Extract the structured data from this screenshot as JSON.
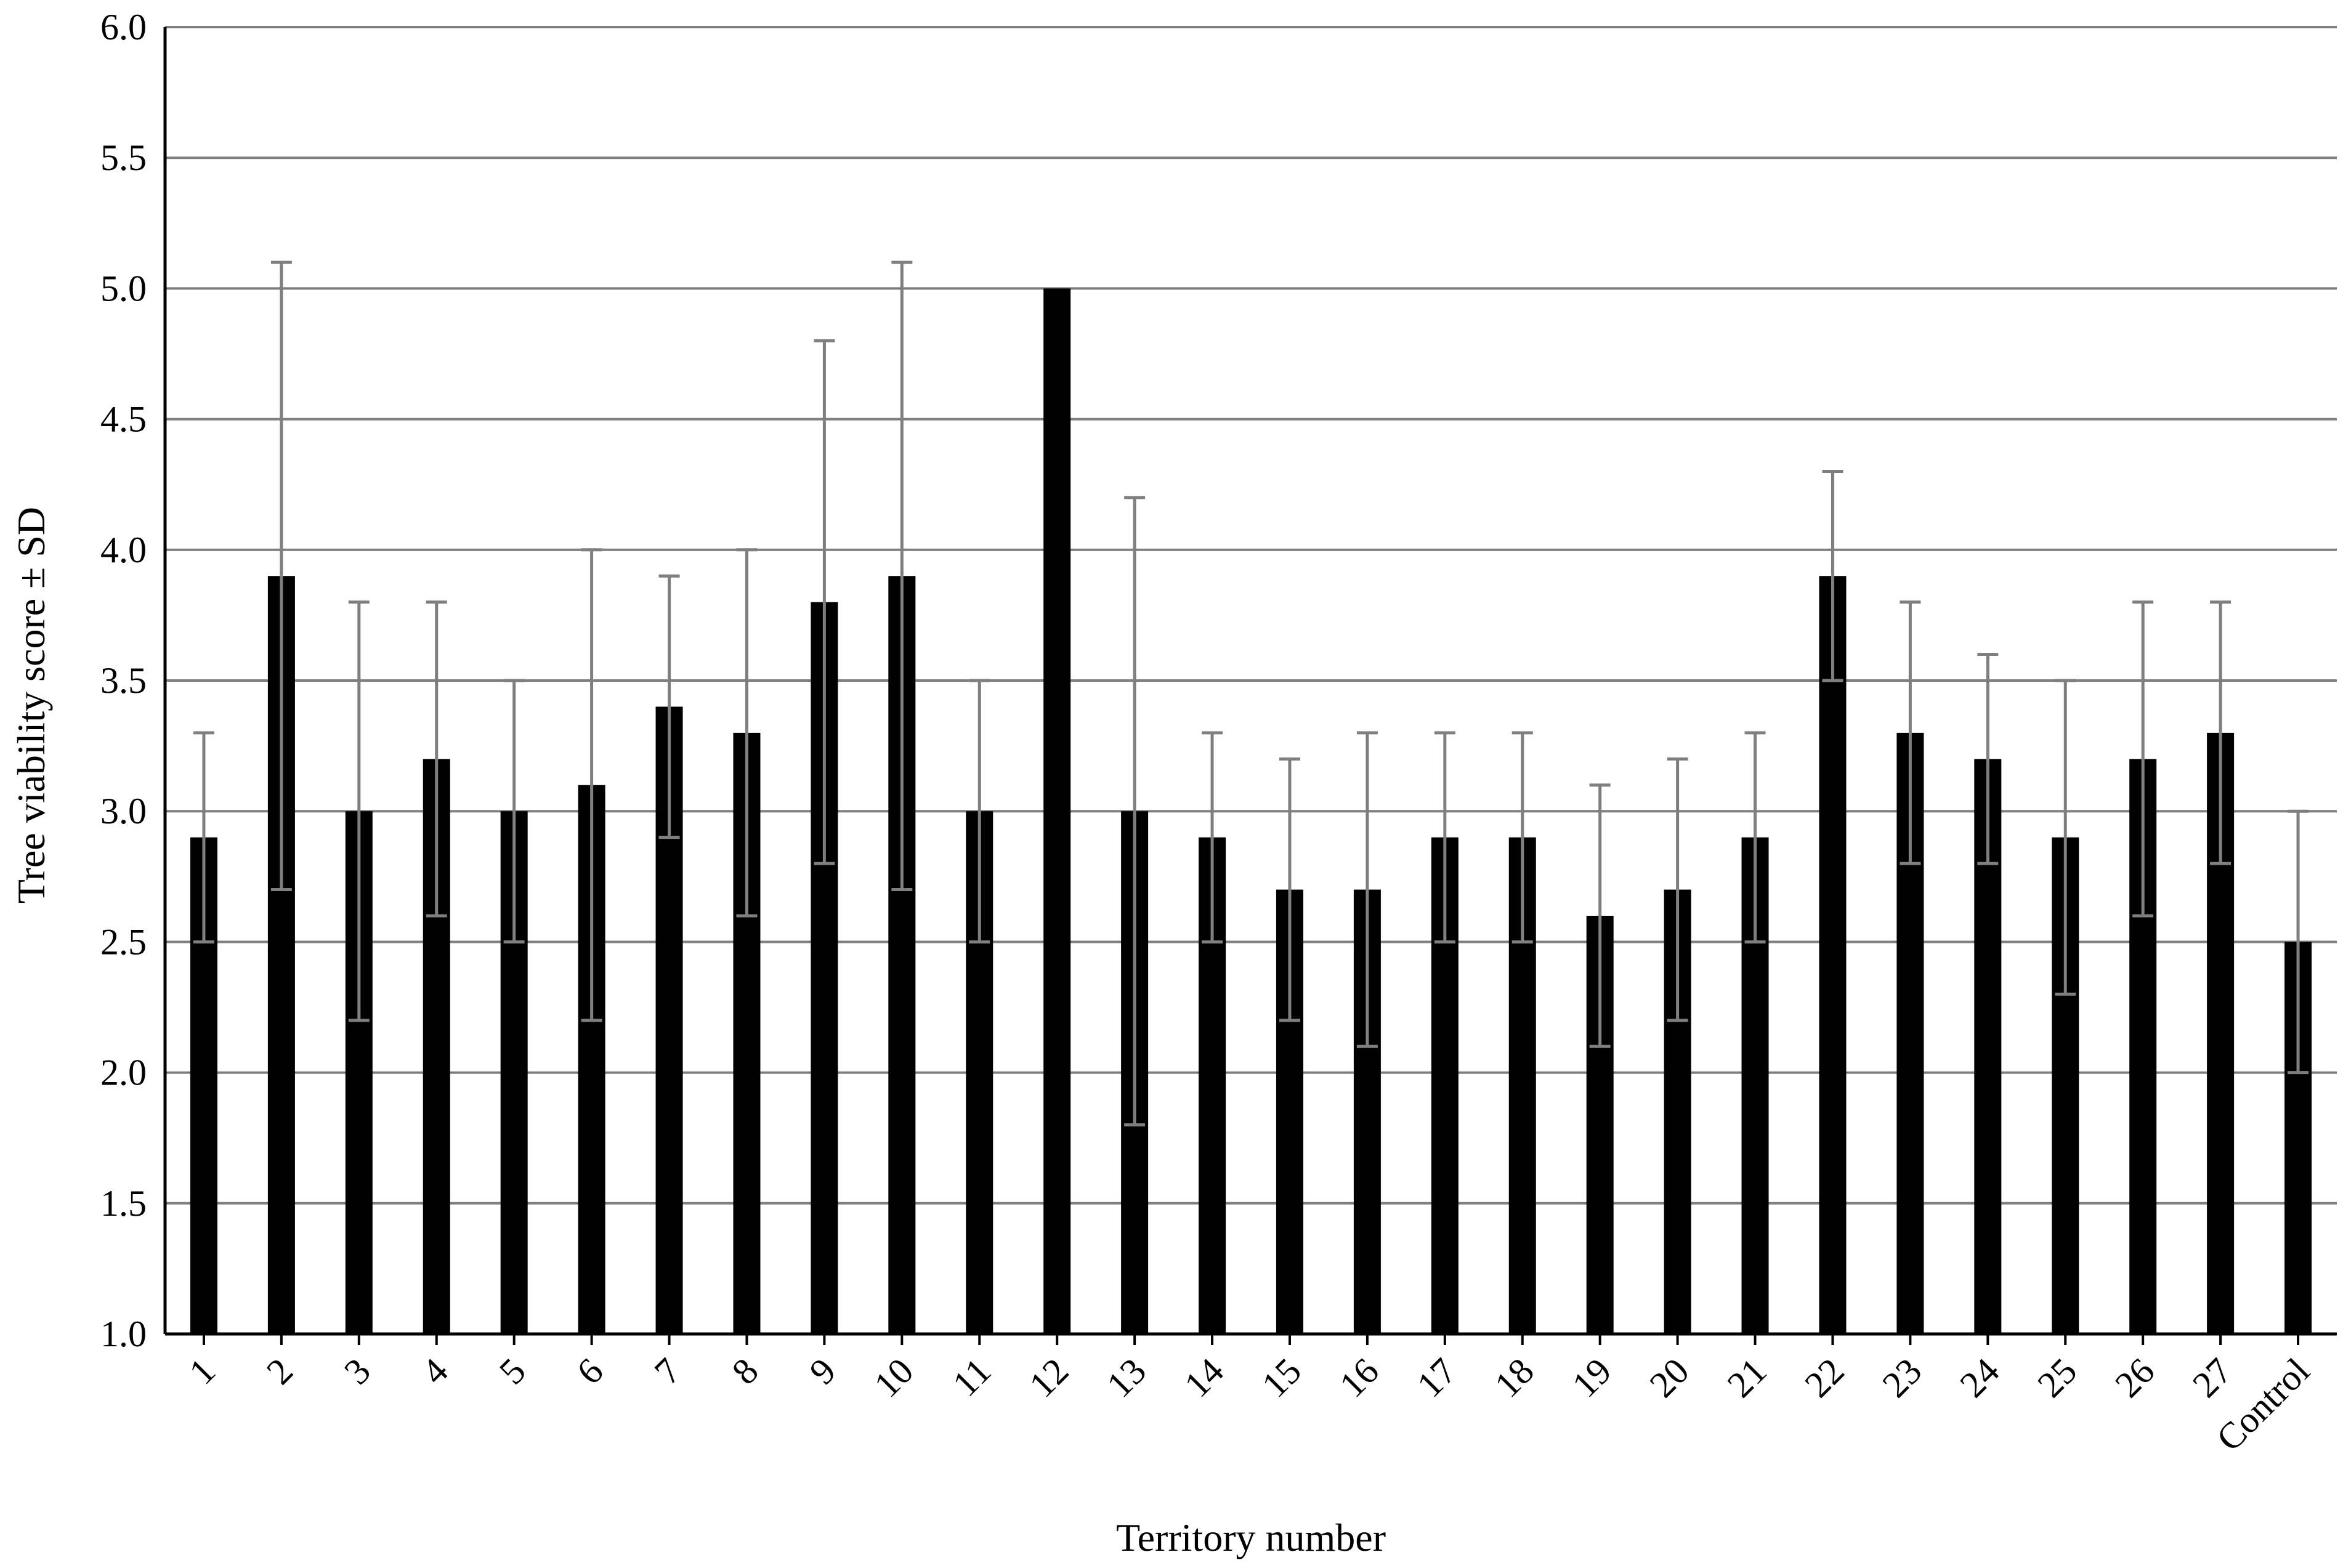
{
  "chart_data": {
    "type": "bar",
    "xlabel": "Territory number",
    "ylabel": "Tree viability score ± SD",
    "ylim": [
      1.0,
      6.0
    ],
    "yticks": [
      "1.0",
      "1.5",
      "2.0",
      "2.5",
      "3.0",
      "3.5",
      "4.0",
      "4.5",
      "5.0",
      "5.5",
      "6.0"
    ],
    "grid": true,
    "categories": [
      "1",
      "2",
      "3",
      "4",
      "5",
      "6",
      "7",
      "8",
      "9",
      "10",
      "11",
      "12",
      "13",
      "14",
      "15",
      "16",
      "17",
      "18",
      "19",
      "20",
      "21",
      "22",
      "23",
      "24",
      "25",
      "26",
      "27",
      "Control"
    ],
    "values": [
      2.9,
      3.9,
      3.0,
      3.2,
      3.0,
      3.1,
      3.4,
      3.3,
      3.8,
      3.9,
      3.0,
      5.0,
      3.0,
      2.9,
      2.7,
      2.7,
      2.9,
      2.9,
      2.6,
      2.7,
      2.9,
      3.9,
      3.3,
      3.2,
      2.9,
      3.2,
      3.3,
      2.5
    ],
    "sd": [
      0.4,
      1.2,
      0.8,
      0.6,
      0.5,
      0.9,
      0.5,
      0.7,
      1.0,
      1.2,
      0.5,
      0.0,
      1.2,
      0.4,
      0.5,
      0.6,
      0.4,
      0.4,
      0.5,
      0.5,
      0.4,
      0.4,
      0.5,
      0.4,
      0.6,
      0.6,
      0.5,
      0.5
    ],
    "colors": {
      "bar": "#000000",
      "error_bar": "#7f7f7f",
      "grid": "#7f7f7f",
      "axis": "#000000"
    }
  }
}
